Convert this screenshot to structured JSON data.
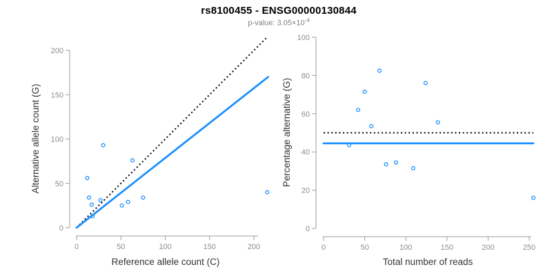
{
  "header": {
    "title": "rs8100455 - ENSG00000130844",
    "subtitle_base": "p-value: 3.05×10",
    "subtitle_exponent": "-4"
  },
  "colors": {
    "accent_blue": "#1E90FF",
    "reference_line": "#000000",
    "axis_line": "#9e9e9e",
    "tick_label": "#8c8c8c",
    "axis_title": "#333333",
    "title": "#000000",
    "subtitle": "#808080"
  },
  "chart_data": [
    {
      "type": "scatter",
      "panel": "allele-counts",
      "xlabel": "Reference allele count (C)",
      "ylabel": "Alternative allele count (G)",
      "xlim": [
        0,
        216
      ],
      "ylim": [
        0,
        215
      ],
      "xticks": [
        0,
        50,
        100,
        150,
        200
      ],
      "yticks": [
        0,
        50,
        100,
        150,
        200
      ],
      "grid": false,
      "points": [
        [
          12,
          56
        ],
        [
          14,
          34
        ],
        [
          17,
          26
        ],
        [
          18,
          13
        ],
        [
          27,
          31
        ],
        [
          30,
          93
        ],
        [
          51,
          25
        ],
        [
          58,
          29
        ],
        [
          63,
          76
        ],
        [
          75,
          34
        ],
        [
          215,
          40
        ]
      ],
      "lines": [
        {
          "name": "identity-line",
          "style": "dotted",
          "color": "#000000",
          "x1": 0,
          "y1": 0,
          "x2": 214,
          "y2": 214
        },
        {
          "name": "fit-line",
          "style": "solid",
          "color": "#1E90FF",
          "x1": 0,
          "y1": 0,
          "x2": 216,
          "y2": 170
        }
      ]
    },
    {
      "type": "scatter",
      "panel": "percentage-vs-coverage",
      "xlabel": "Total number of reads",
      "ylabel": "Percentage alternative (G)",
      "xlim": [
        0,
        256
      ],
      "ylim": [
        0,
        100
      ],
      "xticks": [
        0,
        50,
        100,
        150,
        200,
        250
      ],
      "yticks": [
        0,
        20,
        40,
        60,
        80,
        100
      ],
      "grid": false,
      "points": [
        [
          31,
          43.5
        ],
        [
          42,
          62
        ],
        [
          50,
          71.5
        ],
        [
          58,
          53.5
        ],
        [
          68,
          82.5
        ],
        [
          76,
          33.5
        ],
        [
          88,
          34.5
        ],
        [
          109,
          31.5
        ],
        [
          124,
          76
        ],
        [
          139,
          55.5
        ],
        [
          255,
          16
        ]
      ],
      "lines": [
        {
          "name": "fifty-percent-line",
          "style": "dotted",
          "color": "#000000",
          "x1": 0,
          "y1": 50,
          "x2": 255,
          "y2": 50
        },
        {
          "name": "mean-percentage-line",
          "style": "solid",
          "color": "#1E90FF",
          "x1": 0,
          "y1": 44.5,
          "x2": 255,
          "y2": 44.5
        }
      ]
    }
  ]
}
